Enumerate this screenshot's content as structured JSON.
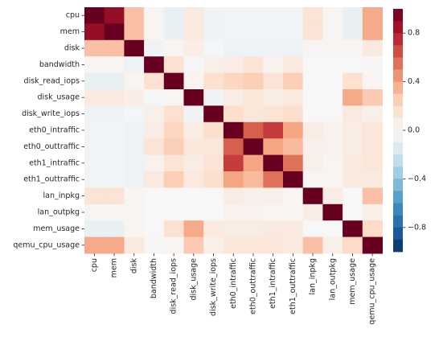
{
  "chart_data": {
    "type": "heatmap",
    "title": "",
    "xlabel": "",
    "ylabel": "",
    "labels": [
      "cpu",
      "mem",
      "disk",
      "bandwidth",
      "disk_read_iops",
      "disk_usage",
      "disk_write_iops",
      "eth0_intraffic",
      "eth0_outtraffic",
      "eth1_intraffic",
      "eth1_outtraffic",
      "lan_inpkg",
      "lan_outpkg",
      "mem_usage",
      "qemu_cpu_usage"
    ],
    "matrix": [
      [
        1.0,
        0.88,
        0.3,
        0.02,
        -0.08,
        0.1,
        -0.04,
        -0.03,
        -0.03,
        -0.03,
        -0.03,
        0.14,
        0.02,
        -0.08,
        0.38
      ],
      [
        0.88,
        1.0,
        0.3,
        0.02,
        -0.08,
        0.1,
        -0.04,
        -0.03,
        -0.03,
        -0.03,
        -0.03,
        0.14,
        0.02,
        -0.08,
        0.38
      ],
      [
        0.3,
        0.3,
        1.0,
        -0.04,
        0.02,
        0.07,
        -0.02,
        -0.06,
        -0.06,
        -0.06,
        -0.06,
        0.02,
        0.02,
        0.02,
        0.1
      ],
      [
        0.02,
        0.02,
        -0.04,
        1.0,
        0.16,
        -0.02,
        0.06,
        0.08,
        0.14,
        0.04,
        0.1,
        0.0,
        0.0,
        0.0,
        0.01
      ],
      [
        -0.08,
        -0.08,
        0.02,
        0.16,
        1.0,
        0.02,
        0.16,
        0.22,
        0.25,
        0.14,
        0.25,
        0.0,
        0.0,
        0.16,
        0.02
      ],
      [
        0.1,
        0.1,
        0.07,
        -0.02,
        0.02,
        1.0,
        -0.04,
        0.08,
        0.12,
        0.08,
        0.1,
        0.0,
        0.0,
        0.38,
        0.26
      ],
      [
        -0.04,
        -0.04,
        -0.02,
        0.06,
        0.16,
        -0.04,
        1.0,
        0.18,
        0.12,
        0.14,
        0.18,
        0.0,
        0.0,
        0.1,
        0.06
      ],
      [
        -0.03,
        -0.03,
        -0.06,
        0.08,
        0.22,
        0.08,
        0.18,
        1.0,
        0.6,
        0.7,
        0.4,
        0.08,
        0.04,
        0.08,
        0.12
      ],
      [
        -0.03,
        -0.03,
        -0.06,
        0.14,
        0.25,
        0.12,
        0.12,
        0.6,
        1.0,
        0.4,
        0.32,
        0.06,
        0.04,
        0.08,
        0.12
      ],
      [
        -0.03,
        -0.03,
        -0.06,
        0.04,
        0.14,
        0.08,
        0.14,
        0.7,
        0.4,
        1.0,
        0.55,
        0.06,
        0.02,
        0.1,
        0.12
      ],
      [
        -0.03,
        -0.03,
        -0.06,
        0.1,
        0.25,
        0.1,
        0.18,
        0.4,
        0.32,
        0.55,
        1.0,
        0.02,
        0.02,
        0.1,
        0.1
      ],
      [
        0.14,
        0.14,
        0.02,
        0.0,
        0.0,
        0.0,
        0.0,
        0.08,
        0.06,
        0.06,
        0.02,
        1.0,
        0.08,
        0.0,
        0.3
      ],
      [
        0.02,
        0.02,
        0.02,
        0.0,
        0.0,
        0.0,
        0.0,
        0.04,
        0.04,
        0.02,
        0.02,
        0.08,
        1.0,
        0.0,
        0.06
      ],
      [
        -0.08,
        -0.08,
        0.02,
        0.0,
        0.16,
        0.38,
        0.1,
        0.08,
        0.08,
        0.1,
        0.1,
        0.0,
        0.0,
        1.0,
        0.2
      ],
      [
        0.38,
        0.38,
        0.1,
        0.01,
        0.02,
        0.26,
        0.06,
        0.12,
        0.12,
        0.12,
        0.1,
        0.3,
        0.06,
        0.2,
        1.0
      ]
    ],
    "colorbar": {
      "ticks": [
        0.8,
        0.4,
        0.0,
        -0.4,
        -0.8
      ],
      "tick_labels": [
        "0.8",
        "0.4",
        "0.0",
        "−0.4",
        "−0.8"
      ],
      "vmin": -1.0,
      "vmax": 1.0,
      "colormap": "RdBu_r",
      "colors": [
        "#053061",
        "#2166ac",
        "#4393c3",
        "#92c5de",
        "#d1e5f0",
        "#f7f7f7",
        "#fddbc7",
        "#f4a582",
        "#d6604d",
        "#b2182b",
        "#67001f"
      ]
    }
  }
}
